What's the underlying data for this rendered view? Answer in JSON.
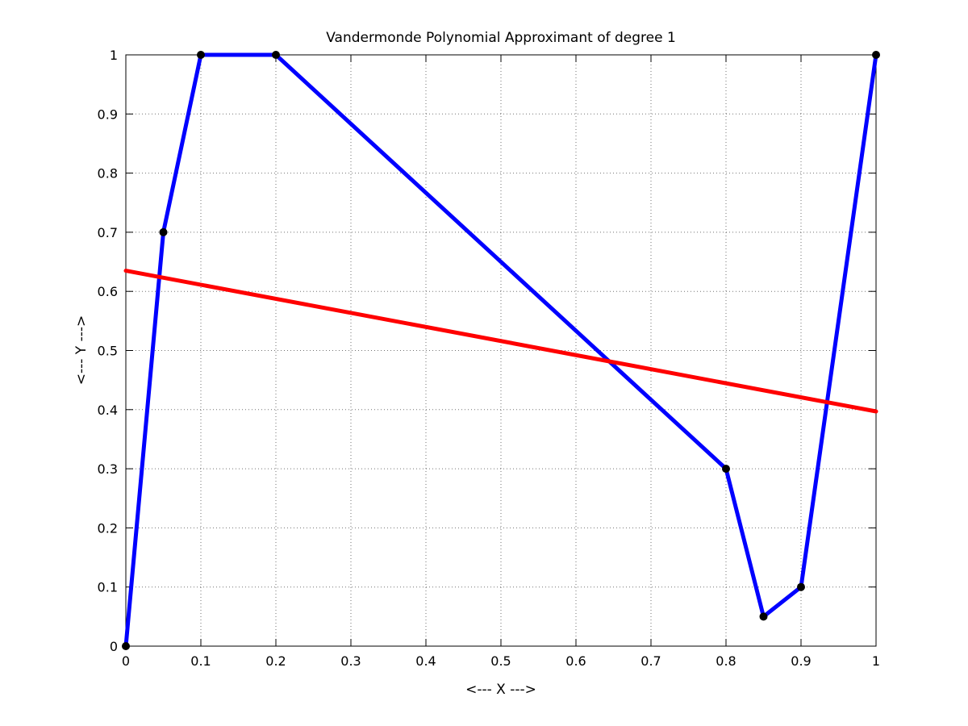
{
  "chart_data": {
    "type": "line",
    "title": "Vandermonde Polynomial Approximant of degree 1",
    "xlabel": "<--- X --->",
    "ylabel": "<--- Y --->",
    "xlim": [
      0,
      1
    ],
    "ylim": [
      0,
      1
    ],
    "grid": true,
    "x_ticks": [
      0,
      0.1,
      0.2,
      0.3,
      0.4,
      0.5,
      0.6,
      0.7,
      0.8,
      0.9,
      1
    ],
    "x_tick_labels": [
      "0",
      "0.1",
      "0.2",
      "0.3",
      "0.4",
      "0.5",
      "0.6",
      "0.7",
      "0.8",
      "0.9",
      "1"
    ],
    "y_ticks": [
      0,
      0.1,
      0.2,
      0.3,
      0.4,
      0.5,
      0.6,
      0.7,
      0.8,
      0.9,
      1
    ],
    "y_tick_labels": [
      "0",
      "0.1",
      "0.2",
      "0.3",
      "0.4",
      "0.5",
      "0.6",
      "0.7",
      "0.8",
      "0.9",
      "1"
    ],
    "series": [
      {
        "color": "#0000ff",
        "x": [
          0,
          0.05,
          0.1,
          0.2,
          0.8,
          0.85,
          0.9,
          1
        ],
        "y": [
          0,
          0.7,
          1,
          1,
          0.3,
          0.05,
          0.1,
          1
        ],
        "markers": true,
        "marker_color": "#000000"
      },
      {
        "color": "#ff0000",
        "x": [
          0,
          1
        ],
        "y": [
          0.635,
          0.397
        ],
        "markers": false
      }
    ]
  }
}
